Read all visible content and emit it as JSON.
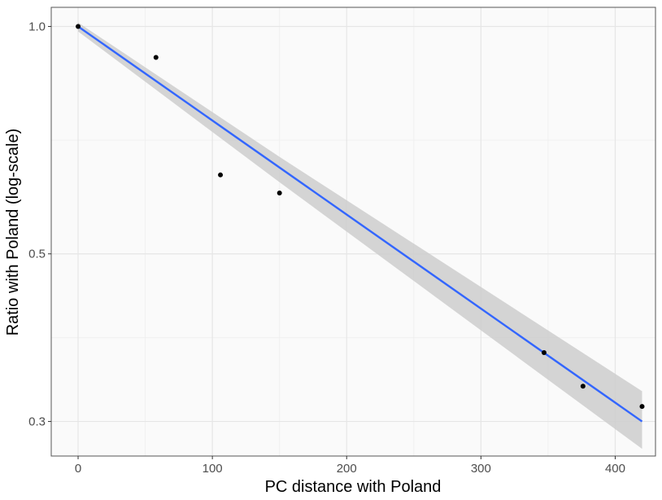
{
  "chart_data": {
    "type": "scatter",
    "xlabel": "PC distance with Poland",
    "ylabel": "Ratio with Poland (log-scale)",
    "x_scale": "linear",
    "y_scale": "log",
    "xlim": [
      -20,
      430
    ],
    "ylim": [
      0.27,
      1.06
    ],
    "x_ticks": [
      0,
      100,
      200,
      300,
      400
    ],
    "x_tick_labels": [
      "0",
      "100",
      "200",
      "300",
      "400"
    ],
    "y_ticks": [
      0.3,
      0.5,
      1.0
    ],
    "y_tick_labels": [
      "0.3",
      "0.5",
      "1.0"
    ],
    "y_minor_ticks": [
      0.3873,
      0.7071
    ],
    "x_minor_ticks": [
      50,
      150,
      250,
      350
    ],
    "grid": true,
    "points": [
      {
        "x": 0,
        "y": 1.0
      },
      {
        "x": 58,
        "y": 0.91
      },
      {
        "x": 106,
        "y": 0.636
      },
      {
        "x": 150,
        "y": 0.602
      },
      {
        "x": 347,
        "y": 0.37
      },
      {
        "x": 376,
        "y": 0.334
      },
      {
        "x": 420,
        "y": 0.314
      }
    ],
    "trend_line": {
      "method": "lm",
      "x": [
        0,
        420
      ],
      "y": [
        1.0,
        0.3
      ],
      "color": "#3366ff"
    },
    "confidence_band": {
      "x": [
        0,
        150,
        420
      ],
      "y_lower": [
        0.985,
        0.622,
        0.276
      ],
      "y_upper": [
        1.012,
        0.672,
        0.329
      ],
      "color": "#cccccc"
    },
    "colors": {
      "panel_background": "#fafafa",
      "grid_major": "#e6e6e6",
      "grid_minor": "#f0f0f0",
      "panel_border": "#555555",
      "point": "#000000"
    }
  }
}
